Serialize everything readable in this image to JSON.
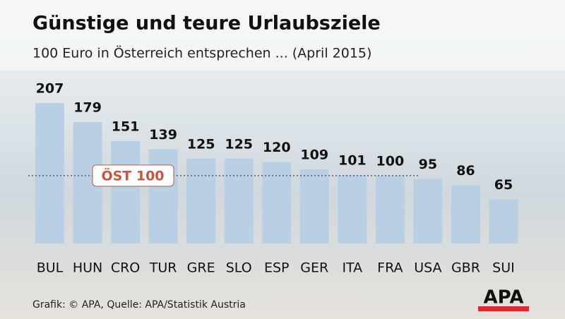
{
  "chart_data": {
    "type": "bar",
    "title": "Günstige und teure Urlaubsziele",
    "subtitle": "100 Euro in Österreich entsprechen ... (April 2015)",
    "categories": [
      "BUL",
      "HUN",
      "CRO",
      "TUR",
      "GRE",
      "SLO",
      "ESP",
      "GER",
      "ITA",
      "FRA",
      "USA",
      "GBR",
      "SUI"
    ],
    "values": [
      207,
      179,
      151,
      139,
      125,
      125,
      120,
      109,
      101,
      100,
      95,
      86,
      65
    ],
    "color": "#b9cfe3",
    "reference": {
      "value": 100,
      "label": "ÖST 100"
    },
    "source": "Grafik: © APA, Quelle: APA/Statistik Austria",
    "logo": "APA"
  }
}
